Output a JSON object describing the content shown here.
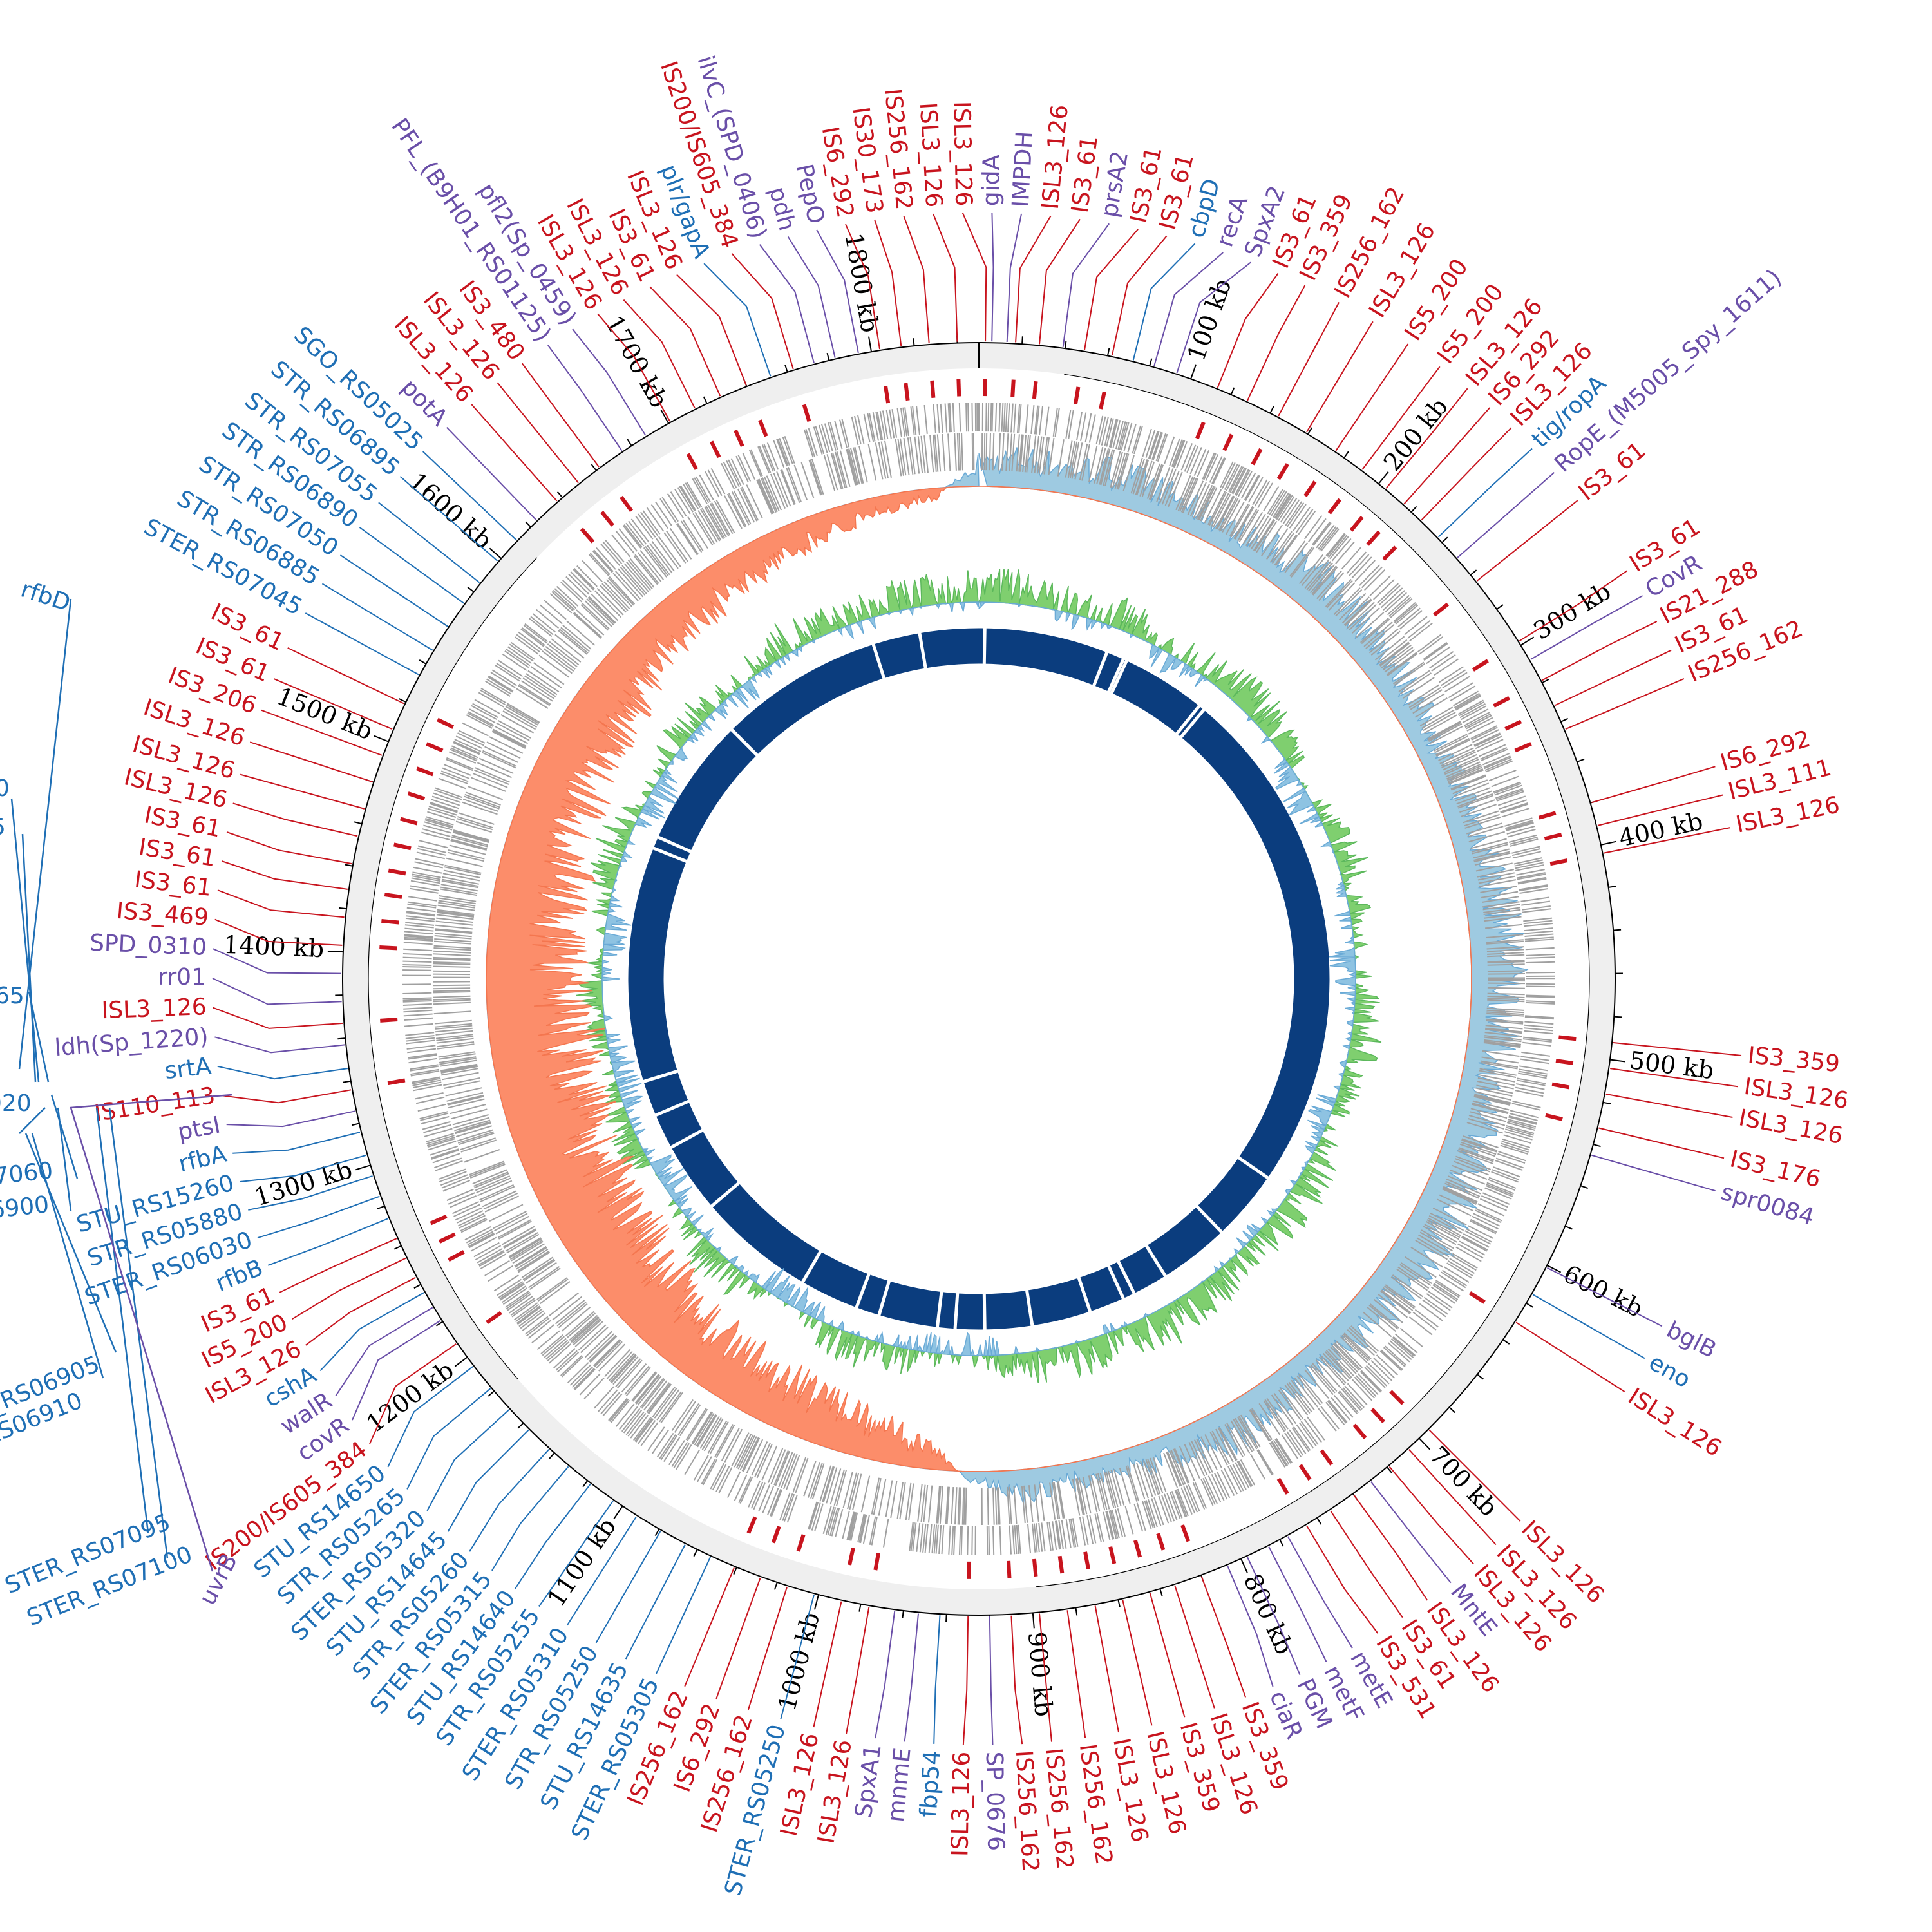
{
  "chart_data": {
    "type": "circular-genome-map",
    "genome_length_kb": 1850,
    "tick_major_kb": 100,
    "tick_minor_kb": 20,
    "tick_labels": [
      "100 kb",
      "200 kb",
      "300 kb",
      "400 kb",
      "500 kb",
      "600 kb",
      "700 kb",
      "800 kb",
      "900 kb",
      "1000 kb",
      "1100 kb",
      "1200 kb",
      "1300 kb",
      "1400 kb",
      "1500 kb",
      "1600 kb",
      "1700 kb",
      "1800 kb"
    ],
    "colors": {
      "is_element": "#c8141e",
      "locus": "#1f6fb5",
      "gene": "#6a4fa8",
      "backbone": "#efefef",
      "gene_track": "#a0a0a0",
      "skew_pos": "#9ecae1",
      "skew_neg": "#fc8d6a",
      "gc_pos": "#7fcf6f",
      "gc_neg": "#8ec3e2",
      "inner_ring": "#0b3d7e"
    },
    "labels": [
      [
        "ISL3_126",
        3,
        "r"
      ],
      [
        "gidA",
        6,
        "p"
      ],
      [
        "IMPDH",
        13,
        "p"
      ],
      [
        "ISL3_126",
        17,
        "r"
      ],
      [
        "IS3_61",
        28,
        "r"
      ],
      [
        "prsA2",
        39,
        "p"
      ],
      [
        "IS3_61",
        49,
        "r"
      ],
      [
        "IS3_61",
        62,
        "r"
      ],
      [
        "cbpD",
        72,
        "b"
      ],
      [
        "recA",
        82,
        "p"
      ],
      [
        "SpxA2",
        93,
        "p"
      ],
      [
        "IS3_61",
        113,
        "r"
      ],
      [
        "IS3_359",
        128,
        "r"
      ],
      [
        "IS256_162",
        144,
        "r"
      ],
      [
        "ISL3_126",
        159,
        "r"
      ],
      [
        "IS5_200",
        175,
        "r"
      ],
      [
        "IS5_200",
        190,
        "r"
      ],
      [
        "ISL3_126",
        204,
        "r"
      ],
      [
        "IS6_292",
        215,
        "r"
      ],
      [
        "ISL3_126",
        226,
        "r"
      ],
      [
        "tig/ropA",
        237,
        "b"
      ],
      [
        "RopE_(M5005_Spy_1611)",
        250,
        "p"
      ],
      [
        "IS3_61",
        264,
        "r"
      ],
      [
        "IS3_61",
        298,
        "r"
      ],
      [
        "CovR",
        308,
        "p"
      ],
      [
        "IS21_288",
        319,
        "r"
      ],
      [
        "IS3_61",
        332,
        "r"
      ],
      [
        "IS256_162",
        344,
        "r"
      ],
      [
        "IS6_292",
        380,
        "r"
      ],
      [
        "ISL3_111",
        391,
        "r"
      ],
      [
        "ISL3_126",
        404,
        "r"
      ],
      [
        "IS3_359",
        492,
        "r"
      ],
      [
        "ISL3_126",
        504,
        "r"
      ],
      [
        "ISL3_126",
        516,
        "r"
      ],
      [
        "IS3_176",
        532,
        "r"
      ],
      [
        "spr0084",
        545,
        "p"
      ],
      [
        "bglB",
        601,
        "p"
      ],
      [
        "eno",
        615,
        "b"
      ],
      [
        "ISL3_126",
        630,
        "r"
      ],
      [
        "ISL3_126",
        694,
        "r"
      ],
      [
        "ISL3_126",
        707,
        "r"
      ],
      [
        "ISL3_126",
        719,
        "r"
      ],
      [
        "MntE",
        730,
        "p"
      ],
      [
        "ISL3_126",
        740,
        "r"
      ],
      [
        "IS3_61",
        753,
        "r"
      ],
      [
        "IS3_531",
        766,
        "r"
      ],
      [
        "metE",
        776,
        "p"
      ],
      [
        "metF",
        786,
        "p"
      ],
      [
        "PGM",
        797,
        "p"
      ],
      [
        "ciaR",
        807,
        "p"
      ],
      [
        "IS3_359",
        820,
        "r"
      ],
      [
        "ISL3_126",
        833,
        "r"
      ],
      [
        "IS3_359",
        845,
        "r"
      ],
      [
        "ISL3_126",
        858,
        "r"
      ],
      [
        "ISL3_126",
        871,
        "r"
      ],
      [
        "IS256_162",
        884,
        "r"
      ],
      [
        "IS256_162",
        897,
        "r"
      ],
      [
        "IS256_162",
        910,
        "r"
      ],
      [
        "SP_0676",
        920,
        "p"
      ],
      [
        "ISL3_126",
        930,
        "r"
      ],
      [
        "fbp54",
        943,
        "b"
      ],
      [
        "mnmE",
        953,
        "p"
      ],
      [
        "SpxA1",
        964,
        "p"
      ],
      [
        "ISL3_126",
        976,
        "r"
      ],
      [
        "ISL3_126",
        989,
        "r"
      ],
      [
        "STER_RS05250",
        1002,
        "b"
      ],
      [
        "IS256_162",
        1015,
        "r"
      ],
      [
        "IS6_292",
        1028,
        "r"
      ],
      [
        "IS256_162",
        1041,
        "r"
      ],
      [
        "STER_RS05305",
        1053,
        "b"
      ],
      [
        "STU_RS14635",
        1066,
        "b"
      ],
      [
        "STR_RS05250",
        1079,
        "b"
      ],
      [
        "STER_RS05310",
        1092,
        "b"
      ],
      [
        "STR_RS05255",
        1105,
        "b"
      ],
      [
        "STU_RS14640",
        1118,
        "b"
      ],
      [
        "STER_RS05315",
        1131,
        "b"
      ],
      [
        "STR_RS05260",
        1143,
        "b"
      ],
      [
        "STU_RS14645",
        1156,
        "b"
      ],
      [
        "STER_RS05320",
        1169,
        "b"
      ],
      [
        "STR_RS05265",
        1182,
        "b"
      ],
      [
        "STU_RS14650",
        1195,
        "b"
      ],
      [
        "IS200/IS605_384",
        1208,
        "r"
      ],
      [
        "covR",
        1221,
        "p"
      ],
      [
        "walR",
        1228,
        "p"
      ],
      [
        "cshA",
        1236,
        "b"
      ],
      [
        "ISL3_126",
        1244,
        "r"
      ],
      [
        "IS5_200",
        1254,
        "r"
      ],
      [
        "IS3_61",
        1264,
        "r"
      ],
      [
        "rfbB",
        1274,
        "b"
      ],
      [
        "STER_RS06030",
        1285,
        "b"
      ],
      [
        "STR_RS05880",
        1295,
        "b"
      ],
      [
        "STU_RS15260",
        1305,
        "b"
      ],
      [
        "rfbA",
        1316,
        "b"
      ],
      [
        "ptsI",
        1326,
        "p"
      ],
      [
        "IS110_113",
        1336,
        "r"
      ],
      [
        "srtA",
        1346,
        "b"
      ],
      [
        "ldh(Sp_1220)",
        1357,
        "p"
      ],
      [
        "ISL3_126",
        1367,
        "r"
      ],
      [
        "rr01",
        1377,
        "p"
      ],
      [
        "SPD_0310",
        1390,
        "p"
      ],
      [
        "IS3_469",
        1403,
        "r"
      ],
      [
        "IS3_61",
        1416,
        "r"
      ],
      [
        "IS3_61",
        1429,
        "r"
      ],
      [
        "IS3_61",
        1441,
        "r"
      ],
      [
        "ISL3_126",
        1454,
        "r"
      ],
      [
        "ISL3_126",
        1467,
        "r"
      ],
      [
        "ISL3_126",
        1480,
        "r"
      ],
      [
        "IS3_206",
        1493,
        "r"
      ],
      [
        "IS3_61",
        1506,
        "r"
      ],
      [
        "IS3_61",
        1519,
        "r"
      ],
      [
        "STER_RS07045",
        1534,
        "b"
      ],
      [
        "STR_RS06885",
        1547,
        "b"
      ],
      [
        "STR_RS07050",
        1560,
        "b"
      ],
      [
        "STR_RS06890",
        1573,
        "b"
      ],
      [
        "STR_RS07055",
        1585,
        "b"
      ],
      [
        "STR_RS06895",
        1598,
        "b"
      ],
      [
        "SGO_RS05025",
        1611,
        "b"
      ],
      [
        "potA",
        1624,
        "p"
      ],
      [
        "ISL3_126",
        1637,
        "r"
      ],
      [
        "ISL3_126",
        1650,
        "r"
      ],
      [
        "IS3_480",
        1662,
        "r"
      ],
      [
        "PFL_(B9H01_RS01125)",
        1675,
        "p"
      ],
      [
        "pfl2(Sp_0459)",
        1688,
        "p"
      ],
      [
        "ISL3_126",
        1701,
        "r"
      ],
      [
        "ISL3_126",
        1714,
        "r"
      ],
      [
        "IS3_61",
        1727,
        "r"
      ],
      [
        "ISL3_126",
        1740,
        "r"
      ],
      [
        "plr/gapA",
        1752,
        "b"
      ],
      [
        "IS200/IS605_384",
        1763,
        "r"
      ],
      [
        "ilvC_(SPD_0406)",
        1773,
        "p"
      ],
      [
        "pdh",
        1783,
        "p"
      ],
      [
        "PepO",
        1794,
        "p"
      ],
      [
        "IS6_292",
        1804,
        "r"
      ],
      [
        "IS30_173",
        1814,
        "r"
      ],
      [
        "IS256_162",
        1827,
        "r"
      ],
      [
        "ISL3_126",
        1840,
        "r"
      ]
    ],
    "edge_labels": [
      "rfbD",
      "0",
      "5",
      "65",
      "020",
      "7060",
      "6900",
      "_RS06905",
      "RS06910",
      "STER_RS07095",
      "STER_RS07100",
      "uvrB"
    ],
    "gc_skew_bins_25kb": [
      0.35,
      0.45,
      0.4,
      0.5,
      0.45,
      0.4,
      0.35,
      0.45,
      0.5,
      0.55,
      0.5,
      0.45,
      0.4,
      0.35,
      0.4,
      0.45,
      0.5,
      0.55,
      0.6,
      0.55,
      0.5,
      0.45,
      0.5,
      0.55,
      0.6,
      0.6,
      0.55,
      0.5,
      0.45,
      0.4,
      0.45,
      0.5,
      0.4,
      0.35,
      0.3,
      0.3,
      0.35,
      0.2,
      -0.2,
      -0.35,
      -0.45,
      -0.5,
      -0.55,
      -0.6,
      -0.6,
      -0.65,
      -0.7,
      -0.75,
      -0.8,
      -0.8,
      -0.85,
      -0.85,
      -0.9,
      -0.9,
      -0.95,
      -0.9,
      -0.85,
      -0.8,
      -0.8,
      -0.75,
      -0.7,
      -0.7,
      -0.65,
      -0.6,
      -0.55,
      -0.5,
      -0.45,
      -0.4,
      -0.35,
      -0.3,
      -0.25,
      -0.2,
      -0.15,
      -0.1
    ],
    "gc_content_bins_25kb": [
      0.3,
      0.4,
      0.2,
      0.1,
      0.3,
      0.2,
      -0.1,
      0.1,
      0.2,
      0.4,
      0.3,
      0.1,
      -0.2,
      -0.1,
      0.2,
      0.3,
      0.1,
      -0.1,
      -0.2,
      0.1,
      0.2,
      0.3,
      0.1,
      -0.1,
      0.2,
      0.3,
      0.4,
      0.2,
      0.1,
      0.3,
      0.4,
      0.5,
      0.3,
      0.2,
      0.4,
      0.3,
      0.2,
      -0.1,
      -0.2,
      0.1,
      0.2,
      0.3,
      0.1,
      -0.1,
      -0.2,
      0.2,
      0.3,
      0.1,
      -0.2,
      -0.3,
      0.2,
      0.1,
      -0.1,
      -0.2,
      0.3,
      0.2,
      -0.1,
      -0.2,
      0.1,
      0.2,
      0.3,
      -0.1,
      -0.2,
      0.1,
      0.2,
      0.1,
      -0.1,
      0.2,
      0.3,
      0.2,
      0.1,
      0.2,
      0.3,
      0.2
    ],
    "inner_ring_gaps_kb": [
      5,
      110,
      125,
      128,
      200,
      205,
      640,
      700,
      760,
      790,
      800,
      830,
      880,
      920,
      945,
      960,
      1010,
      1030,
      1080,
      1180,
      1240,
      1270,
      1300,
      1500,
      1510,
      1620,
      1760,
      1800
    ]
  }
}
